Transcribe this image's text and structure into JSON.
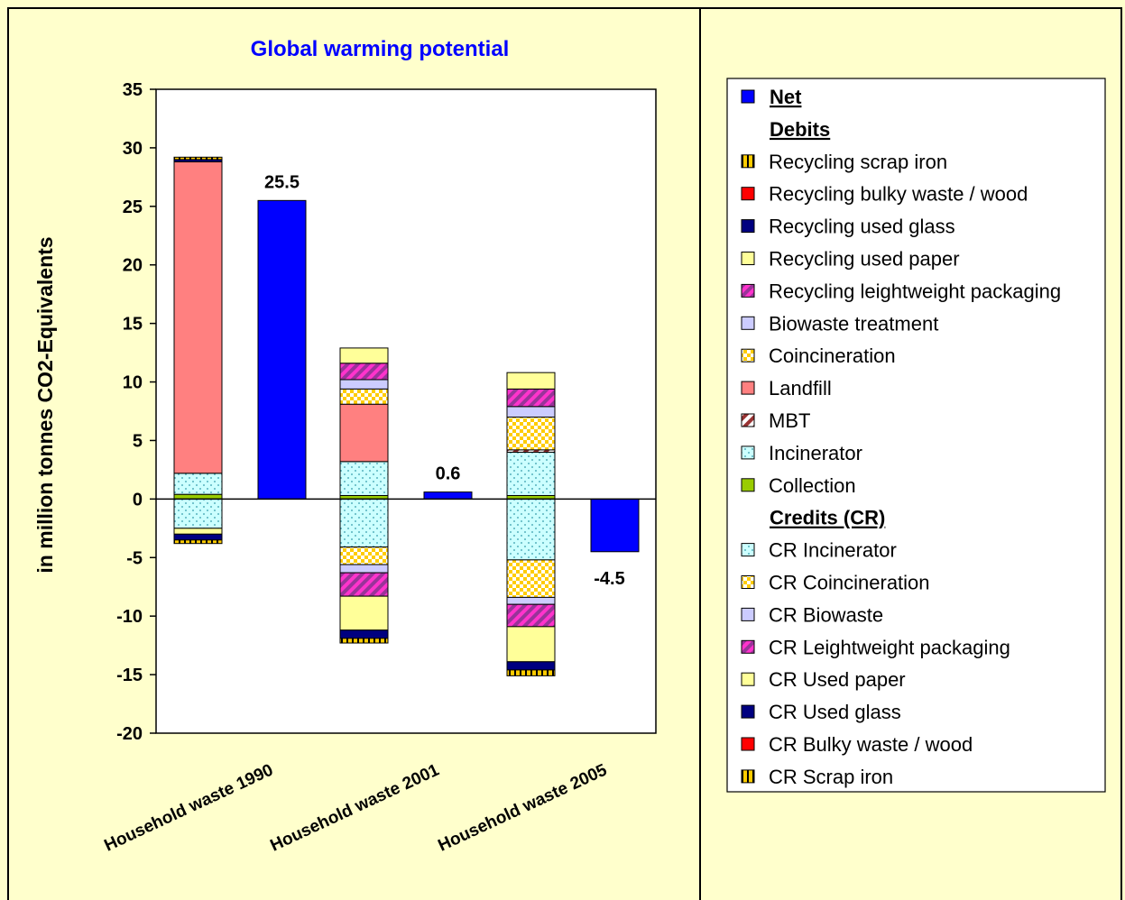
{
  "chart_data": {
    "type": "bar",
    "stacked": true,
    "title": "Global warming potential",
    "ylabel": "in million tonnes CO2-Equivalents",
    "ylim": [
      -20,
      35
    ],
    "yticks": [
      35,
      30,
      25,
      20,
      15,
      10,
      5,
      0,
      -5,
      -10,
      -15,
      -20
    ],
    "categories": [
      "Household waste 1990",
      "Household waste 2001",
      "Household waste 2005"
    ],
    "net": {
      "name": "Net",
      "values": [
        25.5,
        0.6,
        -4.5
      ],
      "labels": [
        "25.5",
        "0.6",
        "-4.5"
      ],
      "color": "#0000FF"
    },
    "debits_heading": "Debits",
    "debits": [
      {
        "name": "Collection",
        "values": [
          0.4,
          0.3,
          0.3
        ],
        "color": "#99CC00",
        "pattern": "solid"
      },
      {
        "name": "Incinerator",
        "values": [
          1.8,
          2.9,
          3.7
        ],
        "color": "#CCFFFF",
        "pattern": "dots"
      },
      {
        "name": "MBT",
        "values": [
          0.0,
          0.0,
          0.2
        ],
        "color": "#993333",
        "pattern": "diag"
      },
      {
        "name": "Landfill",
        "values": [
          26.6,
          4.9,
          0.0
        ],
        "color": "#FF8080",
        "pattern": "solid"
      },
      {
        "name": "Coincineration",
        "values": [
          0.0,
          1.3,
          2.8
        ],
        "color": "#FFCC00",
        "pattern": "checker"
      },
      {
        "name": "Biowaste treatment",
        "values": [
          0.0,
          0.8,
          0.9
        ],
        "color": "#CCCCFF",
        "pattern": "solid"
      },
      {
        "name": "Recycling leightweight packaging",
        "values": [
          0.0,
          1.4,
          1.5
        ],
        "color": "#993399",
        "pattern": "diag"
      },
      {
        "name": "Recycling used paper",
        "values": [
          0.0,
          1.3,
          1.4
        ],
        "color": "#FFFF99",
        "pattern": "solid"
      },
      {
        "name": "Recycling used glass",
        "values": [
          0.2,
          0.0,
          0.0
        ],
        "color": "#000080",
        "pattern": "solid"
      },
      {
        "name": "Recycling bulky waste / wood",
        "values": [
          0.0,
          0.0,
          0.0
        ],
        "color": "#FF0000",
        "pattern": "solid"
      },
      {
        "name": "Recycling scrap iron",
        "values": [
          0.2,
          0.0,
          0.0
        ],
        "color": "#FFCC00",
        "pattern": "vlines"
      }
    ],
    "credits_heading": "Credits (CR)",
    "credits": [
      {
        "name": "CR Incinerator",
        "values": [
          -2.5,
          -4.1,
          -5.2
        ],
        "color": "#CCFFFF",
        "pattern": "dots"
      },
      {
        "name": "CR Coincineration",
        "values": [
          0.0,
          -1.5,
          -3.2
        ],
        "color": "#FFCC00",
        "pattern": "checker"
      },
      {
        "name": "CR Biowaste",
        "values": [
          0.0,
          -0.7,
          -0.6
        ],
        "color": "#CCCCFF",
        "pattern": "solid"
      },
      {
        "name": "CR Leightweight packaging",
        "values": [
          0.0,
          -2.0,
          -1.9
        ],
        "color": "#993399",
        "pattern": "diag"
      },
      {
        "name": "CR Used paper",
        "values": [
          -0.5,
          -2.9,
          -3.0
        ],
        "color": "#FFFF99",
        "pattern": "solid"
      },
      {
        "name": "CR Used glass",
        "values": [
          -0.5,
          -0.7,
          -0.7
        ],
        "color": "#000080",
        "pattern": "solid"
      },
      {
        "name": "CR Bulky waste / wood",
        "values": [
          0.0,
          0.0,
          0.0
        ],
        "color": "#FF0000",
        "pattern": "solid"
      },
      {
        "name": "CR Scrap iron",
        "values": [
          -0.3,
          -0.4,
          -0.5
        ],
        "color": "#FFCC00",
        "pattern": "vlines"
      }
    ],
    "legend": {
      "placement": "right",
      "items": [
        {
          "label": "Net",
          "series": "Net",
          "kind": "head-swatch"
        },
        {
          "label": "Debits",
          "kind": "heading"
        },
        {
          "label": "Recycling scrap iron",
          "series": "Recycling scrap iron"
        },
        {
          "label": "Recycling bulky waste / wood",
          "series": "Recycling bulky waste / wood"
        },
        {
          "label": "Recycling used glass",
          "series": "Recycling used glass"
        },
        {
          "label": "Recycling used paper",
          "series": "Recycling used paper"
        },
        {
          "label": "Recycling leightweight packaging",
          "series": "Recycling leightweight packaging"
        },
        {
          "label": "Biowaste treatment",
          "series": "Biowaste treatment"
        },
        {
          "label": "Coincineration",
          "series": "Coincineration"
        },
        {
          "label": "Landfill",
          "series": "Landfill"
        },
        {
          "label": "MBT",
          "series": "MBT"
        },
        {
          "label": "Incinerator",
          "series": "Incinerator"
        },
        {
          "label": "Collection",
          "series": "Collection"
        },
        {
          "label": "Credits (CR)",
          "kind": "heading"
        },
        {
          "label": "CR Incinerator",
          "series": "CR Incinerator"
        },
        {
          "label": "CR Coincineration",
          "series": "CR Coincineration"
        },
        {
          "label": "CR Biowaste",
          "series": "CR Biowaste"
        },
        {
          "label": "CR Leightweight packaging",
          "series": "CR Leightweight packaging"
        },
        {
          "label": "CR Used paper",
          "series": "CR Used paper"
        },
        {
          "label": "CR Used glass",
          "series": "CR Used glass"
        },
        {
          "label": "CR Bulky waste / wood",
          "series": "CR Bulky waste / wood"
        },
        {
          "label": "CR Scrap iron",
          "series": "CR Scrap iron"
        }
      ]
    },
    "grid": false,
    "background": "#FFFFCC",
    "plot_background": "#FFFFFF"
  }
}
